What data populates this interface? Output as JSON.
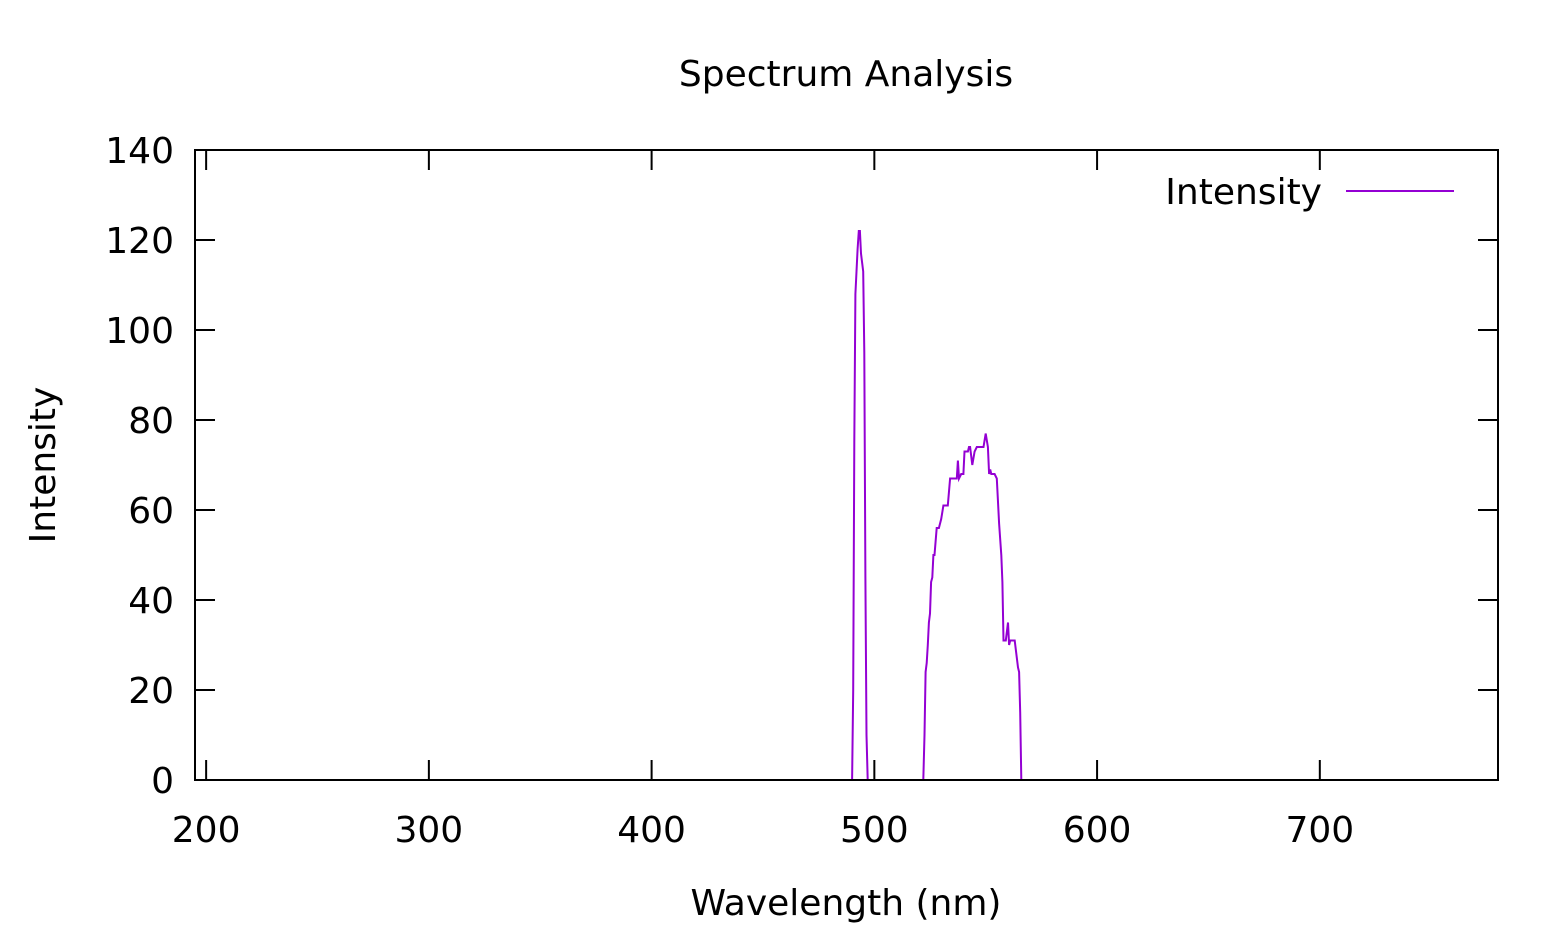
{
  "chart_data": {
    "type": "line",
    "title": "Spectrum Analysis",
    "xlabel": "Wavelength (nm)",
    "ylabel": "Intensity",
    "xlim": [
      195,
      780
    ],
    "ylim": [
      0,
      140
    ],
    "xticks": [
      200,
      300,
      400,
      500,
      600,
      700
    ],
    "yticks": [
      0,
      20,
      40,
      60,
      80,
      100,
      120,
      140
    ],
    "grid": false,
    "legend": "top-right",
    "colors": {
      "series": "#9400d3",
      "axis": "#000000"
    },
    "series": [
      {
        "name": "Intensity",
        "x": [
          195,
          490,
          490.5,
          491,
          491.5,
          492,
          492.5,
          493,
          493.5,
          494,
          494.5,
          495,
          495.5,
          496,
          496.5,
          497,
          497.5,
          498,
          522,
          522.5,
          523,
          523.5,
          524,
          524.5,
          525,
          525.5,
          526,
          526.5,
          527,
          527.5,
          528,
          529,
          530,
          531,
          532,
          533,
          534,
          535,
          536,
          537,
          537.5,
          538,
          539,
          540,
          540.5,
          541,
          541.5,
          542,
          542.5,
          543,
          544,
          545,
          546,
          546.5,
          547,
          547.5,
          548,
          549,
          550,
          551,
          551.5,
          552,
          552.5,
          553,
          554,
          555,
          556,
          557,
          557.5,
          558,
          558.5,
          559,
          560,
          560.5,
          561,
          561.5,
          562,
          562.5,
          563,
          564,
          564.5,
          565,
          565.5,
          566,
          566.5,
          567,
          780
        ],
        "y": [
          0,
          0,
          20,
          75,
          108,
          113,
          118,
          122,
          122,
          117,
          115,
          113,
          95,
          45,
          10,
          0,
          0,
          0,
          0,
          10,
          24,
          26,
          30,
          35,
          37,
          44,
          45,
          50,
          50,
          53,
          56,
          56,
          58,
          61,
          61,
          61,
          67,
          67,
          67,
          67,
          71,
          67,
          68,
          68,
          73,
          73,
          73,
          73,
          74,
          74,
          70,
          73,
          74,
          74,
          74,
          74,
          74,
          74,
          77,
          74,
          68,
          69,
          68,
          68,
          68,
          67,
          57,
          50,
          44,
          31,
          31,
          31,
          35,
          30,
          31,
          31,
          31,
          31,
          31,
          27,
          25,
          24,
          15,
          0,
          0,
          0,
          0
        ]
      }
    ]
  }
}
